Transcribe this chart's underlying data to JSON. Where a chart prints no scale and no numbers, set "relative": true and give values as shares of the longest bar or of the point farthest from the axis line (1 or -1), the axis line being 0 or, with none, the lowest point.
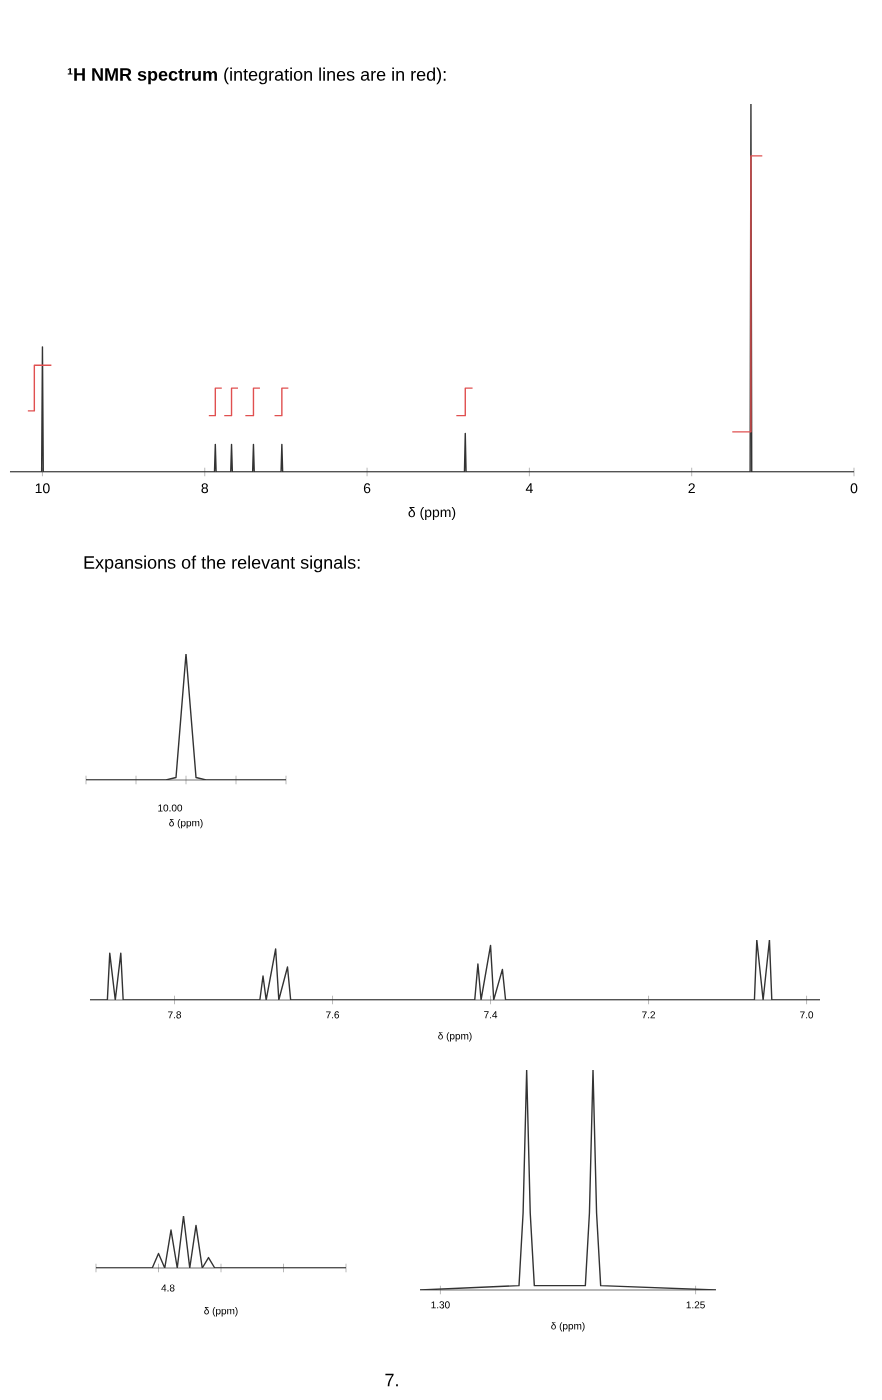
{
  "chart_data": [
    {
      "type": "line",
      "title": "**¹H NMR spectrum** (integration lines are in red):",
      "xlabel": "δ (ppm)",
      "relative": true,
      "tick_labels": "x",
      "xlim": [
        10.4,
        0
      ],
      "xticks": [
        10,
        8,
        6,
        4,
        2,
        0
      ],
      "series": [
        {
          "color": "#333333",
          "x": [
            10.4,
            10.01,
            10.0,
            9.99,
            7.88,
            7.87,
            7.86,
            7.68,
            7.67,
            7.66,
            7.41,
            7.4,
            7.39,
            7.06,
            7.05,
            7.04,
            4.8,
            4.79,
            4.78,
            1.28,
            1.27,
            1.26,
            0
          ],
          "values": [
            0,
            0,
            0.34,
            0,
            0,
            0.075,
            0,
            0,
            0.075,
            0,
            0,
            0.075,
            0,
            0,
            0.075,
            0,
            0,
            0.105,
            0,
            0,
            1,
            0,
            0
          ]
        },
        {
          "color": "#e05050",
          "x": [
            10.18,
            10.1,
            10.1,
            9.89,
            null,
            7.95,
            7.87,
            7.87,
            7.79,
            null,
            7.76,
            7.67,
            7.67,
            7.59,
            null,
            7.5,
            7.4,
            7.4,
            7.32,
            null,
            7.14,
            7.05,
            7.05,
            6.97,
            null,
            4.9,
            4.79,
            4.79,
            4.7,
            null,
            1.5,
            1.27,
            1.27,
            1.13
          ],
          "values": [
            0.166,
            0.166,
            0.29,
            0.29,
            null,
            0.153,
            0.153,
            0.228,
            0.228,
            null,
            0.153,
            0.153,
            0.228,
            0.228,
            null,
            0.153,
            0.153,
            0.228,
            0.228,
            null,
            0.153,
            0.153,
            0.228,
            0.228,
            null,
            0.153,
            0.153,
            0.228,
            0.228,
            null,
            0.109,
            0.109,
            0.859,
            0.859
          ]
        }
      ]
    },
    {
      "type": "line",
      "title": "Expansions of the relevant signals:",
      "xlabel": "δ (ppm)",
      "relative": true,
      "tick_labels": false,
      "annotations": [
        "10.00"
      ],
      "categories": [
        null,
        null,
        null,
        null,
        null,
        null,
        null,
        null,
        null,
        null,
        null,
        null,
        null,
        null,
        null,
        null,
        null,
        null,
        null,
        null,
        null
      ],
      "series": [
        {
          "color": "#333333",
          "values": [
            0,
            0,
            0,
            0,
            0,
            0,
            0,
            0,
            0,
            0.02,
            1,
            0.02,
            0,
            0,
            0,
            0,
            0,
            0,
            0,
            0,
            0
          ]
        }
      ]
    },
    {
      "type": "line",
      "xlabel": "δ (ppm)",
      "relative": true,
      "tick_labels": "x",
      "xlim": [
        7.907,
        6.983
      ],
      "xticks": [
        7.8,
        7.6,
        7.4,
        7.2,
        {
          "value": 7.0,
          "label": "7.0"
        }
      ],
      "series": [
        {
          "color": "#333333",
          "x": [
            7.907,
            7.885,
            7.882,
            7.875,
            7.868,
            7.865,
            7.692,
            7.688,
            7.684,
            7.672,
            7.668,
            7.657,
            7.653,
            7.42,
            7.416,
            7.412,
            7.4,
            7.396,
            7.385,
            7.381,
            7.066,
            7.063,
            7.055,
            7.047,
            7.044,
            6.983
          ],
          "values": [
            0,
            0,
            0.78,
            0,
            0.78,
            0,
            0,
            0.4,
            0,
            0.85,
            0,
            0.55,
            0,
            0,
            0.6,
            0,
            0.91,
            0,
            0.51,
            0,
            0,
            1,
            0,
            1,
            0,
            0
          ]
        }
      ]
    },
    {
      "type": "line",
      "xlabel": "δ (ppm)",
      "relative": true,
      "tick_labels": false,
      "annotations": [
        "4.8"
      ],
      "categories": [
        null,
        null,
        null,
        null,
        null,
        null,
        null,
        null,
        null,
        null,
        null,
        null,
        null,
        null,
        null,
        null,
        null,
        null,
        null,
        null,
        null,
        null,
        null,
        null,
        null,
        null,
        null,
        null,
        null,
        null,
        null,
        null,
        null,
        null,
        null,
        null,
        null,
        null,
        null,
        null,
        null
      ],
      "series": [
        {
          "color": "#333333",
          "values": [
            0,
            0,
            0,
            0,
            0,
            0,
            0,
            0,
            0,
            0,
            0.28,
            0,
            0.73,
            0,
            1,
            0,
            0.82,
            0,
            0.2,
            0,
            0,
            0,
            0,
            0,
            0,
            0,
            0,
            0,
            0,
            0,
            0,
            0,
            0,
            0,
            0,
            0,
            0,
            0,
            0,
            0,
            0
          ]
        }
      ]
    },
    {
      "type": "line",
      "xlabel": "δ (ppm)",
      "relative": true,
      "tick_labels": "x",
      "xlim": [
        1.304,
        1.246
      ],
      "xticks": [
        {
          "value": 1.3,
          "label": "1.30"
        },
        {
          "value": 1.25,
          "label": "1.25"
        }
      ],
      "annotations": [
        "7."
      ],
      "series": [
        {
          "color": "#333333",
          "x": [
            1.304,
            1.2846,
            1.2838,
            1.2831,
            1.2824,
            1.2816,
            1.2716,
            1.2708,
            1.2701,
            1.2694,
            1.2686,
            1.246
          ],
          "values": [
            0,
            0.02,
            0.35,
            1,
            0.35,
            0.02,
            0.02,
            0.35,
            1,
            0.35,
            0.02,
            0
          ]
        }
      ]
    }
  ]
}
